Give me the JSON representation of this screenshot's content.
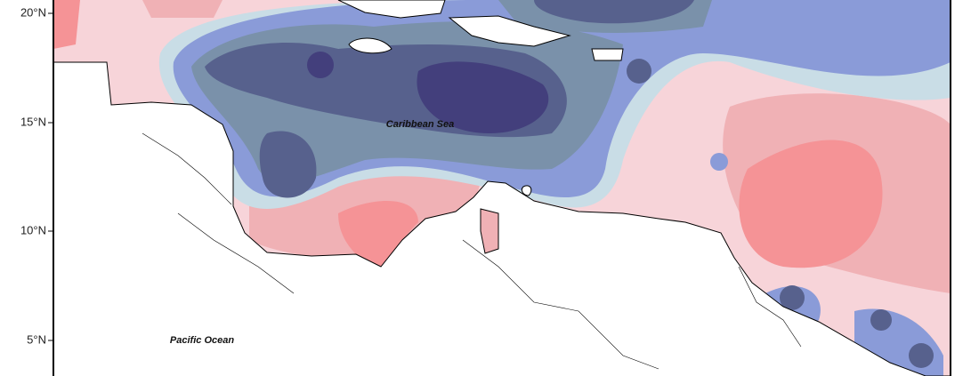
{
  "axis": {
    "latitude_labels": [
      "20°N",
      "15°N",
      "10°N",
      "5°N"
    ]
  },
  "annotations": {
    "caribbean": "Caribbean Sea",
    "pacific": "Pacific Ocean"
  }
}
